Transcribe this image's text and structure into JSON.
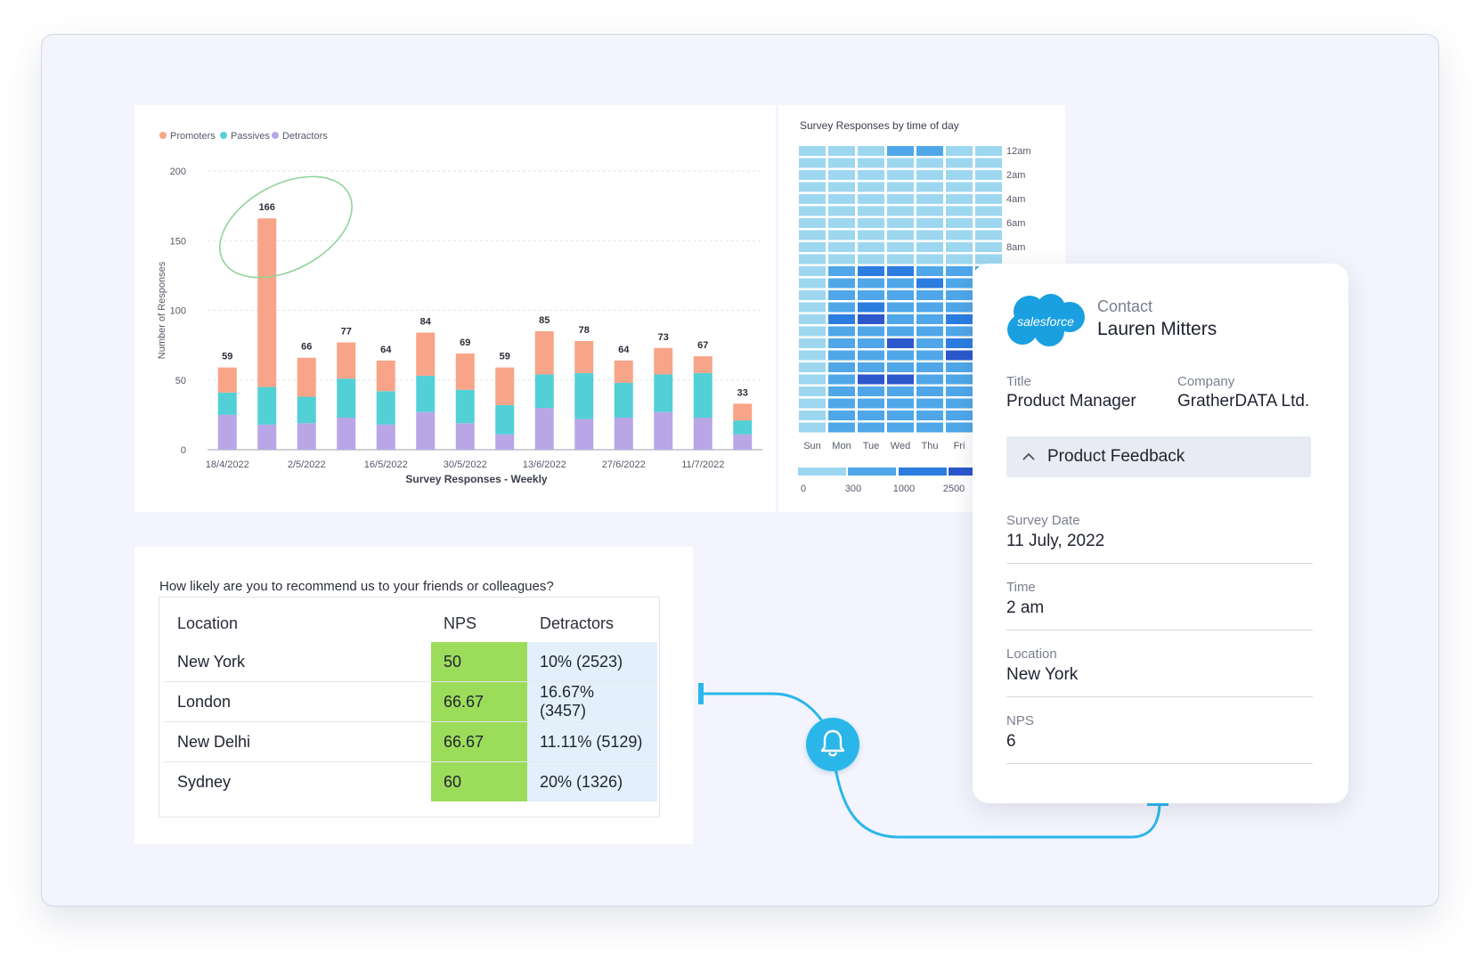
{
  "chart_data": [
    {
      "type": "bar",
      "title": "",
      "xlabel": "Survey Responses - Weekly",
      "ylabel": "Number of Responses",
      "ylim": [
        0,
        200
      ],
      "yticks": [
        0,
        50,
        100,
        150,
        200
      ],
      "grid": true,
      "legend_position": "top-left",
      "xtick_labels": [
        "18/4/2022",
        "2/5/2022",
        "16/5/2022",
        "30/5/2022",
        "13/6/2022",
        "27/6/2022",
        "11/7/2022"
      ],
      "stacked": true,
      "totals": [
        59,
        166,
        66,
        77,
        64,
        84,
        69,
        59,
        85,
        78,
        64,
        73,
        67,
        33
      ],
      "series": [
        {
          "name": "Detractors",
          "color": "#b9a6e6",
          "values": [
            25,
            18,
            19,
            23,
            18,
            27,
            19,
            11,
            30,
            22,
            23,
            27,
            23,
            11
          ]
        },
        {
          "name": "Passives",
          "color": "#52d0d6",
          "values": [
            16,
            27,
            19,
            28,
            24,
            26,
            24,
            21,
            24,
            33,
            25,
            27,
            32,
            10
          ]
        },
        {
          "name": "Promoters",
          "color": "#f8a488",
          "values": [
            18,
            121,
            28,
            26,
            22,
            31,
            26,
            27,
            31,
            23,
            16,
            19,
            12,
            12
          ]
        }
      ],
      "annotation": "hand-drawn-circle"
    },
    {
      "type": "heatmap",
      "title": "Survey Responses by time of day",
      "x_labels": [
        "Sun",
        "Mon",
        "Tue",
        "Wed",
        "Thu",
        "Fri"
      ],
      "y_labels": [
        "12am",
        "2am",
        "4am",
        "6am",
        "8am"
      ],
      "legend_bins": [
        "0",
        "300",
        "1000",
        "2500"
      ],
      "bin_colors": [
        "#9dd7ef",
        "#4fa7ea",
        "#2b7de0",
        "#2c58cc"
      ],
      "columns": 7,
      "rows": 24,
      "cells": [
        [
          0,
          0,
          0,
          1,
          1,
          0,
          0
        ],
        [
          0,
          0,
          0,
          0,
          0,
          0,
          0
        ],
        [
          0,
          0,
          0,
          0,
          0,
          0,
          0
        ],
        [
          0,
          0,
          0,
          0,
          0,
          0,
          0
        ],
        [
          0,
          0,
          0,
          0,
          0,
          0,
          0
        ],
        [
          0,
          0,
          0,
          0,
          0,
          0,
          0
        ],
        [
          0,
          0,
          0,
          0,
          0,
          0,
          0
        ],
        [
          0,
          0,
          0,
          0,
          0,
          0,
          0
        ],
        [
          0,
          0,
          0,
          0,
          0,
          0,
          0
        ],
        [
          0,
          0,
          0,
          0,
          0,
          0,
          0
        ],
        [
          0,
          1,
          2,
          2,
          1,
          1,
          1
        ],
        [
          0,
          1,
          1,
          1,
          2,
          1,
          1
        ],
        [
          0,
          1,
          1,
          1,
          1,
          1,
          1
        ],
        [
          0,
          1,
          2,
          1,
          1,
          1,
          1
        ],
        [
          0,
          2,
          3,
          1,
          1,
          2,
          1
        ],
        [
          0,
          1,
          1,
          1,
          1,
          1,
          1
        ],
        [
          0,
          1,
          1,
          3,
          1,
          2,
          1
        ],
        [
          0,
          1,
          1,
          1,
          1,
          3,
          1
        ],
        [
          0,
          1,
          1,
          1,
          1,
          1,
          1
        ],
        [
          0,
          1,
          3,
          3,
          1,
          1,
          1
        ],
        [
          0,
          1,
          1,
          1,
          1,
          1,
          1
        ],
        [
          0,
          1,
          1,
          1,
          1,
          1,
          1
        ],
        [
          0,
          1,
          1,
          1,
          1,
          1,
          1
        ],
        [
          0,
          1,
          1,
          1,
          1,
          1,
          0
        ]
      ]
    }
  ],
  "nps": {
    "question": "How likely are you to recommend us to your friends or colleagues?",
    "headers": {
      "location": "Location",
      "nps": "NPS",
      "detractors": "Detractors"
    },
    "rows": [
      {
        "location": "New York",
        "nps": "50",
        "detractors": "10% (2523)"
      },
      {
        "location": "London",
        "nps": "66.67",
        "detractors": "16.67% (3457)"
      },
      {
        "location": "New Delhi",
        "nps": "66.67",
        "detractors": "11.11% (5129)"
      },
      {
        "location": "Sydney",
        "nps": "60",
        "detractors": "20% (1326)"
      }
    ]
  },
  "contact": {
    "logo_text": "salesforce",
    "logo_color": "#1aa0e0",
    "label": "Contact",
    "name": "Lauren Mitters",
    "title_label": "Title",
    "title": "Product Manager",
    "company_label": "Company",
    "company": "GratherDATA Ltd.",
    "section": "Product Feedback",
    "fields": [
      {
        "label": "Survey Date",
        "value": "11 July, 2022"
      },
      {
        "label": "Time",
        "value": "2 am"
      },
      {
        "label": "Location",
        "value": "New York"
      },
      {
        "label": "NPS",
        "value": "6"
      }
    ]
  },
  "notification": {
    "icon": "bell-icon",
    "color": "#2bb6ea"
  }
}
